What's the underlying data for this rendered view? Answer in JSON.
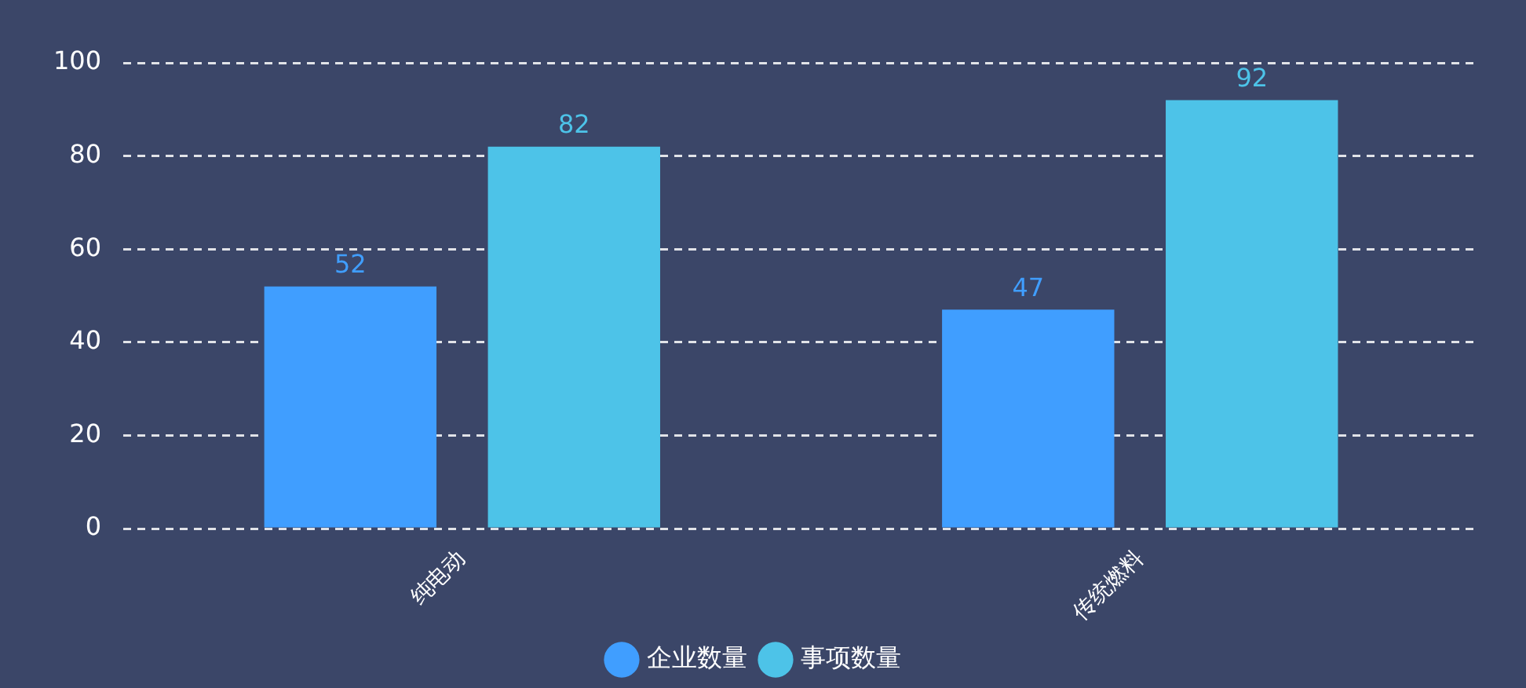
{
  "chart_data": {
    "type": "bar",
    "categories": [
      "纯电动",
      "传统燃料"
    ],
    "series": [
      {
        "name": "企业数量",
        "color": "#409eff",
        "values": [
          52,
          47
        ]
      },
      {
        "name": "事项数量",
        "color": "#4dc3e8",
        "values": [
          82,
          92
        ]
      }
    ],
    "ylim": [
      0,
      100
    ],
    "yticks": [
      0,
      20,
      40,
      60,
      80,
      100
    ],
    "grid": "y",
    "legend": "bottom",
    "data_labels": true
  }
}
